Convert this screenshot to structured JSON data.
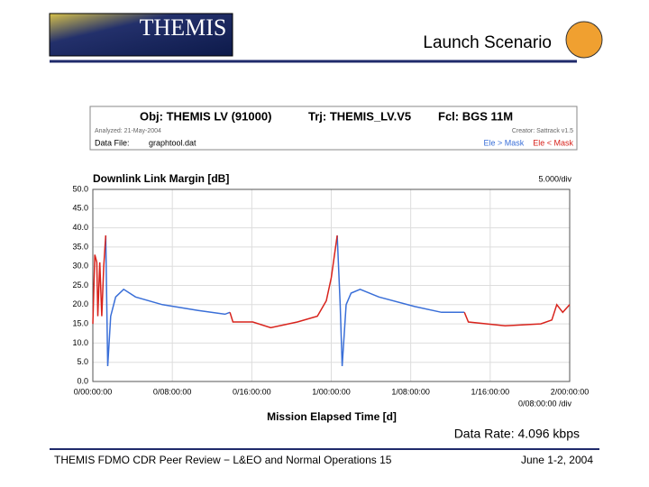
{
  "header": {
    "logo": "THEMIS",
    "title": "Launch Scenario"
  },
  "chart_data": {
    "type": "line",
    "object": "Obj: THEMIS LV (91000)",
    "trajectory": "Trj: THEMIS_LV.V5",
    "facility": "Fcl: BGS 11M",
    "analyzed": "Analyzed: 21-May-2004",
    "creator": "Creator: Sattrack v1.5",
    "data_file_label": "Data File:",
    "data_file": "graphtool.dat",
    "title": "Downlink Link Margin [dB]",
    "y_div": "5.000/div",
    "x_div": "0/08:00:00 /div",
    "xlabel": "Mission Elapsed Time [d]",
    "x": [
      0,
      0.2,
      0.4,
      0.5,
      0.7,
      0.9,
      1.1,
      1.3,
      1.5,
      1.8,
      2.3,
      3.1,
      4.3,
      7.0,
      10.6,
      13.3,
      13.8,
      14.1,
      16.1,
      17.9,
      20.6,
      22.6,
      23.5,
      24.0,
      24.6,
      24.9,
      25.1,
      25.5,
      26.0,
      26.9,
      28.8,
      32.4,
      35.1,
      37.4,
      37.8,
      41.5,
      45.1,
      46.2,
      46.7,
      47.3,
      48.0
    ],
    "series": [
      {
        "name": "Ele > Mask",
        "color": "#3a6fd8",
        "values": [
          null,
          null,
          null,
          null,
          null,
          null,
          null,
          38,
          4,
          17,
          22,
          24,
          22,
          20,
          18.5,
          17.5,
          18,
          null,
          null,
          null,
          null,
          null,
          null,
          null,
          38,
          20,
          4,
          20,
          23,
          24,
          22,
          19.5,
          18,
          18,
          null,
          null,
          null,
          null,
          null,
          null,
          null
        ]
      },
      {
        "name": "Ele < Mask",
        "color": "#d8231c",
        "values": [
          15,
          33,
          31,
          17,
          31,
          17,
          30,
          38,
          null,
          null,
          null,
          null,
          null,
          null,
          null,
          null,
          18,
          15.5,
          15.5,
          14,
          15.5,
          17,
          21,
          27,
          38,
          null,
          null,
          null,
          null,
          null,
          null,
          null,
          null,
          18,
          15.5,
          14.5,
          15,
          16,
          20,
          18,
          20
        ]
      }
    ],
    "xlim": [
      0,
      48
    ],
    "xticks": [
      {
        "value": 0,
        "label": "0/00:00:00"
      },
      {
        "value": 8,
        "label": "0/08:00:00"
      },
      {
        "value": 16,
        "label": "0/16:00:00"
      },
      {
        "value": 24,
        "label": "1/00:00:00"
      },
      {
        "value": 32,
        "label": "1/08:00:00"
      },
      {
        "value": 40,
        "label": "1/16:00:00"
      },
      {
        "value": 48,
        "label": "2/00:00:00"
      }
    ],
    "ylim": [
      0,
      50
    ],
    "yticks": [
      {
        "value": 0,
        "label": "0.0"
      },
      {
        "value": 5,
        "label": "5.0"
      },
      {
        "value": 10,
        "label": "10.0"
      },
      {
        "value": 15,
        "label": "15.0"
      },
      {
        "value": 20,
        "label": "20.0"
      },
      {
        "value": 25,
        "label": "25.0"
      },
      {
        "value": 30,
        "label": "30.0"
      },
      {
        "value": 35,
        "label": "35.0"
      },
      {
        "value": 40,
        "label": "40.0"
      },
      {
        "value": 45,
        "label": "45.0"
      },
      {
        "value": 50,
        "label": "50.0"
      }
    ],
    "grid": true
  },
  "data_rate": "Data Rate: 4.096 kbps",
  "footer": {
    "left": "THEMIS FDMO CDR Peer Review − L&EO and Normal Operations 15",
    "right": "June 1-2, 2004"
  }
}
